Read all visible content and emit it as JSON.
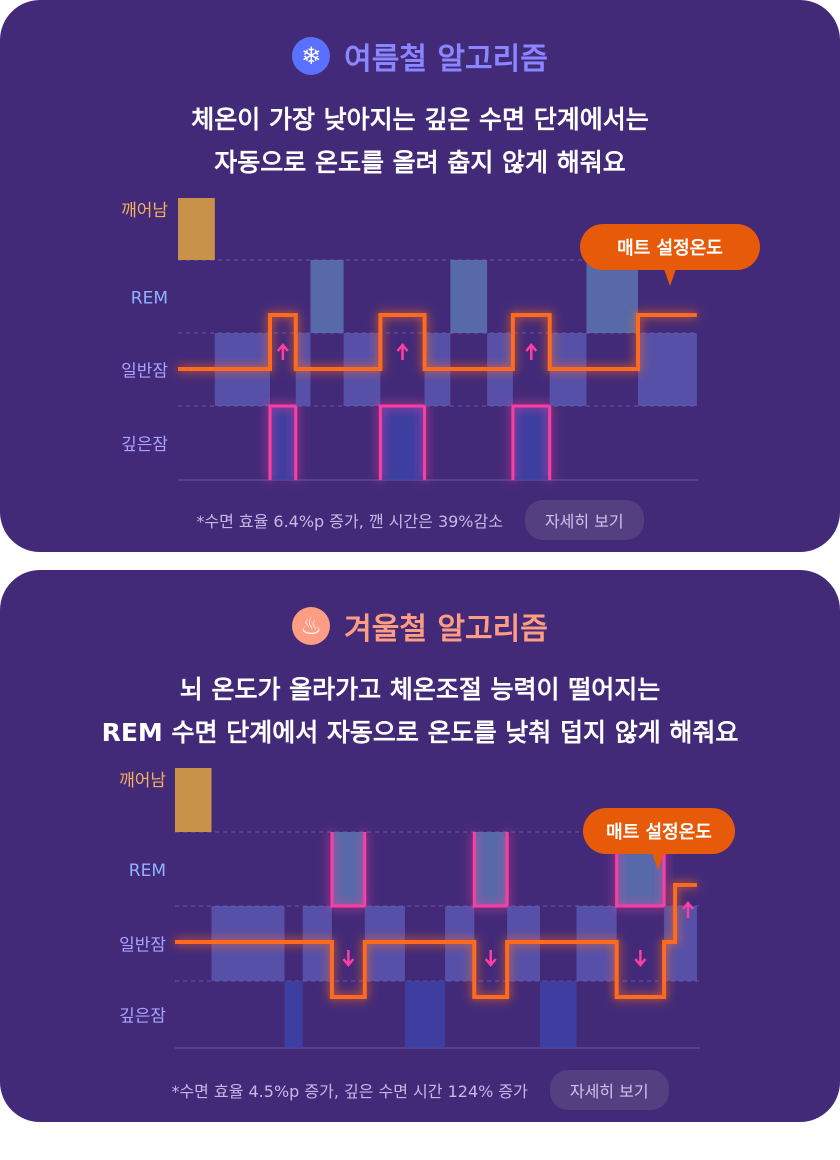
{
  "summer": {
    "title": "여름철 알고리즘",
    "icon": "snowflake-icon",
    "accent": "#8a86ff",
    "desc_lines": [
      "체온이 가장 낮아지는 깊은 수면 단계에서는",
      "자동으로 온도를 올려 춥지 않게 해줘요"
    ],
    "tooltip": "매트 설정온도",
    "note": "*수면 효율 6.4%p 증가, 깬 시간은 39%감소",
    "button": "자세히 보기"
  },
  "winter": {
    "title": "겨울철 알고리즘",
    "icon": "heat-waves-icon",
    "accent": "#ff9c84",
    "desc_lines": [
      "뇌 온도가 올라가고 체온조절 능력이 떨어지는",
      "REM 수면 단계에서 자동으로 온도를 낮춰 덥지 않게 해줘요"
    ],
    "tooltip": "매트 설정온도",
    "note": "*수면 효율 4.5%p 증가, 깊은 수면 시간 124% 증가",
    "button": "자세히 보기"
  },
  "stage_labels": [
    "깨어남",
    "REM",
    "일반잠",
    "깊은잠"
  ],
  "colors": {
    "card": "#432a78",
    "awake": "#c8924b",
    "rem": "#5b74b0",
    "light": "#5a57b0",
    "deep": "#3c42a6",
    "temperature_line": "#ff6a1a",
    "highlight": "#ff3ea0",
    "tooltip": "#e65a0a"
  },
  "chart_data": [
    {
      "type": "step",
      "name": "summer",
      "stages": [
        "깨어남",
        "REM",
        "일반잠",
        "깊은잠"
      ],
      "hypnogram": [
        {
          "stage": "깨어남",
          "from": 0,
          "to": 1
        },
        {
          "stage": "일반잠",
          "from": 1,
          "to": 2.5
        },
        {
          "stage": "깊은잠",
          "from": 2.5,
          "to": 3.2
        },
        {
          "stage": "일반잠",
          "from": 3.2,
          "to": 3.6
        },
        {
          "stage": "REM",
          "from": 3.6,
          "to": 4.5
        },
        {
          "stage": "일반잠",
          "from": 4.5,
          "to": 5.5
        },
        {
          "stage": "깊은잠",
          "from": 5.5,
          "to": 6.7
        },
        {
          "stage": "일반잠",
          "from": 6.7,
          "to": 7.4
        },
        {
          "stage": "REM",
          "from": 7.4,
          "to": 8.4
        },
        {
          "stage": "일반잠",
          "from": 8.4,
          "to": 9.1
        },
        {
          "stage": "깊은잠",
          "from": 9.1,
          "to": 10.1
        },
        {
          "stage": "일반잠",
          "from": 10.1,
          "to": 11.1
        },
        {
          "stage": "REM",
          "from": 11.1,
          "to": 12.5
        },
        {
          "stage": "일반잠",
          "from": 12.5,
          "to": 14.1
        }
      ],
      "highlight_stage": "깊은잠",
      "arrow": "up",
      "temperature_steps": [
        {
          "from": 0,
          "to": 2.5,
          "level": "low"
        },
        {
          "from": 2.5,
          "to": 3.2,
          "level": "high"
        },
        {
          "from": 3.2,
          "to": 5.5,
          "level": "low"
        },
        {
          "from": 5.5,
          "to": 6.7,
          "level": "high"
        },
        {
          "from": 6.7,
          "to": 9.1,
          "level": "low"
        },
        {
          "from": 9.1,
          "to": 10.1,
          "level": "high"
        },
        {
          "from": 10.1,
          "to": 12.5,
          "level": "low"
        },
        {
          "from": 12.5,
          "to": 14.1,
          "level": "high"
        }
      ]
    },
    {
      "type": "step",
      "name": "winter",
      "stages": [
        "깨어남",
        "REM",
        "일반잠",
        "깊은잠"
      ],
      "hypnogram": [
        {
          "stage": "깨어남",
          "from": 0,
          "to": 1
        },
        {
          "stage": "일반잠",
          "from": 1,
          "to": 3
        },
        {
          "stage": "깊은잠",
          "from": 3,
          "to": 3.5
        },
        {
          "stage": "일반잠",
          "from": 3.5,
          "to": 4.3
        },
        {
          "stage": "REM",
          "from": 4.3,
          "to": 5.2
        },
        {
          "stage": "일반잠",
          "from": 5.2,
          "to": 6.3
        },
        {
          "stage": "깊은잠",
          "from": 6.3,
          "to": 7.4
        },
        {
          "stage": "일반잠",
          "from": 7.4,
          "to": 8.2
        },
        {
          "stage": "REM",
          "from": 8.2,
          "to": 9.1
        },
        {
          "stage": "일반잠",
          "from": 9.1,
          "to": 10
        },
        {
          "stage": "깊은잠",
          "from": 10,
          "to": 11
        },
        {
          "stage": "일반잠",
          "from": 11,
          "to": 12.1
        },
        {
          "stage": "REM",
          "from": 12.1,
          "to": 13.4
        },
        {
          "stage": "일반잠",
          "from": 13.4,
          "to": 14.3
        }
      ],
      "highlight_stage": "REM",
      "arrow": "down",
      "temperature_steps": [
        {
          "from": 0,
          "to": 4.3,
          "level": "mid"
        },
        {
          "from": 4.3,
          "to": 5.2,
          "level": "low"
        },
        {
          "from": 5.2,
          "to": 8.2,
          "level": "mid"
        },
        {
          "from": 8.2,
          "to": 9.1,
          "level": "low"
        },
        {
          "from": 9.1,
          "to": 12.1,
          "level": "mid"
        },
        {
          "from": 12.1,
          "to": 13.4,
          "level": "low"
        },
        {
          "from": 13.4,
          "to": 13.7,
          "level": "mid"
        },
        {
          "from": 13.7,
          "to": 14.3,
          "level": "high"
        }
      ],
      "final_arrow": "up"
    }
  ]
}
